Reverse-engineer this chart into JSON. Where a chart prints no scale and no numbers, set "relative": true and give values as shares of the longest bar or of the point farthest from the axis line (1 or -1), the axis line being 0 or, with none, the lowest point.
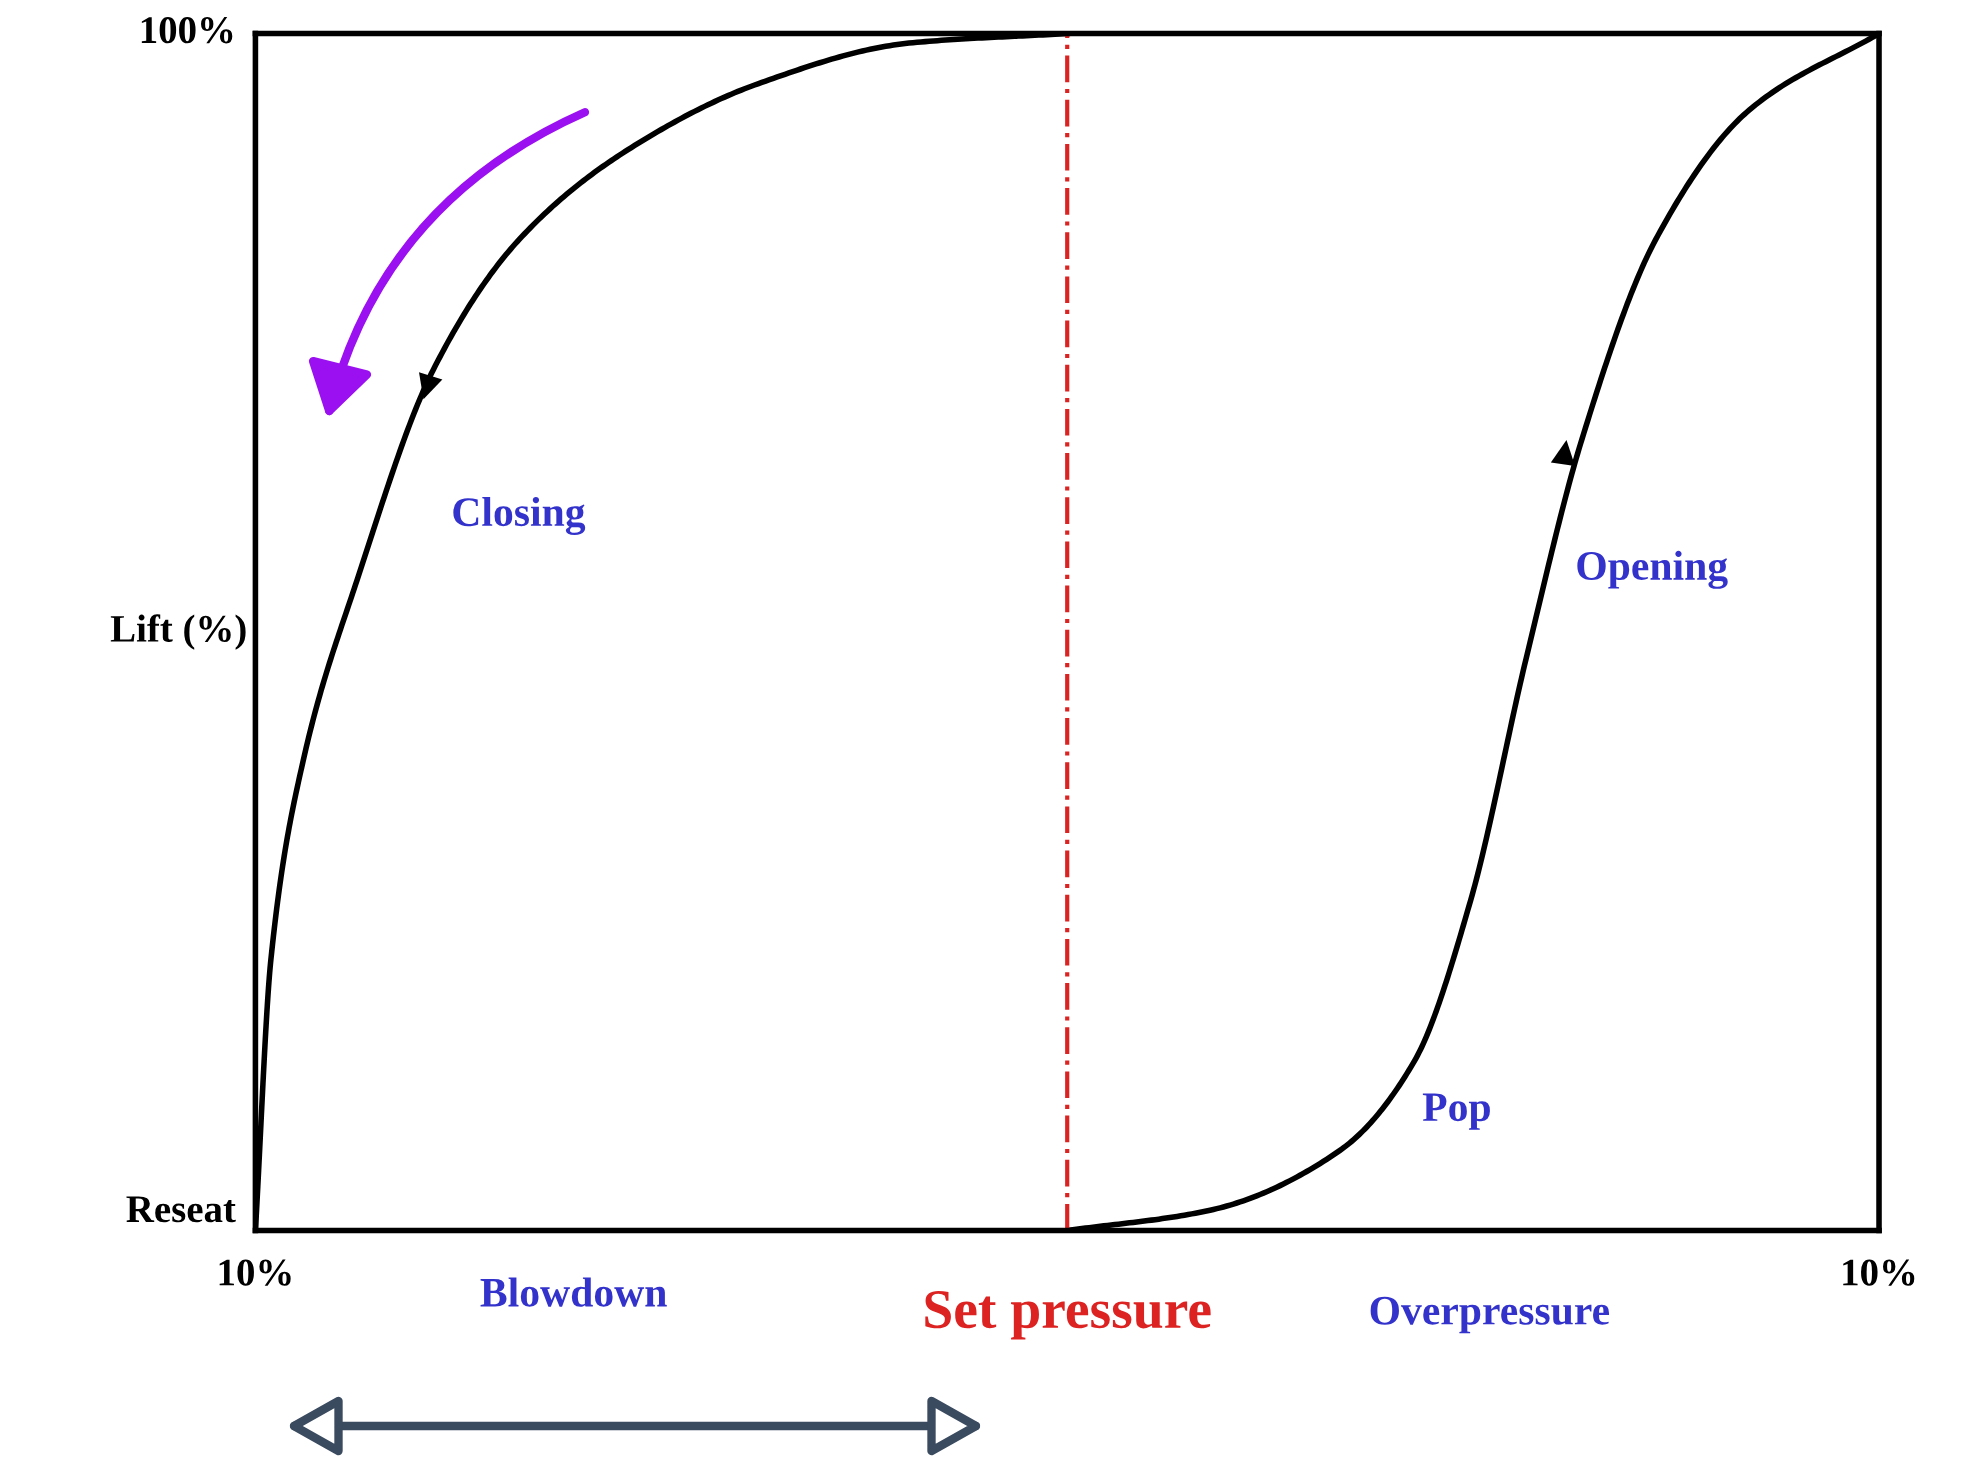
{
  "chart_data": {
    "type": "line",
    "ylabel": "Lift (%)",
    "relative": true,
    "xlim": [
      -10,
      10
    ],
    "xticks": [
      {
        "value": -10,
        "label": "10%"
      },
      {
        "value": 10,
        "label": "10%"
      }
    ],
    "series": [
      {
        "color": "#000000",
        "x": [
          -10,
          -9.81,
          -9.41,
          -8.75,
          -7.81,
          -6.75,
          -5.41,
          -3.81,
          -1.95,
          0
        ],
        "values": [
          0,
          0.226,
          0.393,
          0.543,
          0.719,
          0.828,
          0.903,
          0.958,
          0.992,
          1
        ]
      },
      {
        "color": "#000000",
        "x": [
          0,
          1.76,
          3.36,
          4.28,
          4.97,
          5.65,
          6.34,
          7.25,
          8.4,
          10
        ],
        "values": [
          0,
          0.017,
          0.067,
          0.142,
          0.276,
          0.477,
          0.661,
          0.828,
          0.936,
          1
        ]
      }
    ],
    "ref_lines": [
      {
        "axis": "x",
        "value": 0,
        "label": "Set pressure",
        "color": "#dd2222",
        "line_style": "dashdot"
      }
    ],
    "annotations": [
      "Closing",
      "Opening",
      "Pop",
      "Blowdown",
      "Overpressure",
      "100%",
      "Reseat"
    ],
    "marker": "none",
    "line_style": "solid",
    "legend": false
  }
}
